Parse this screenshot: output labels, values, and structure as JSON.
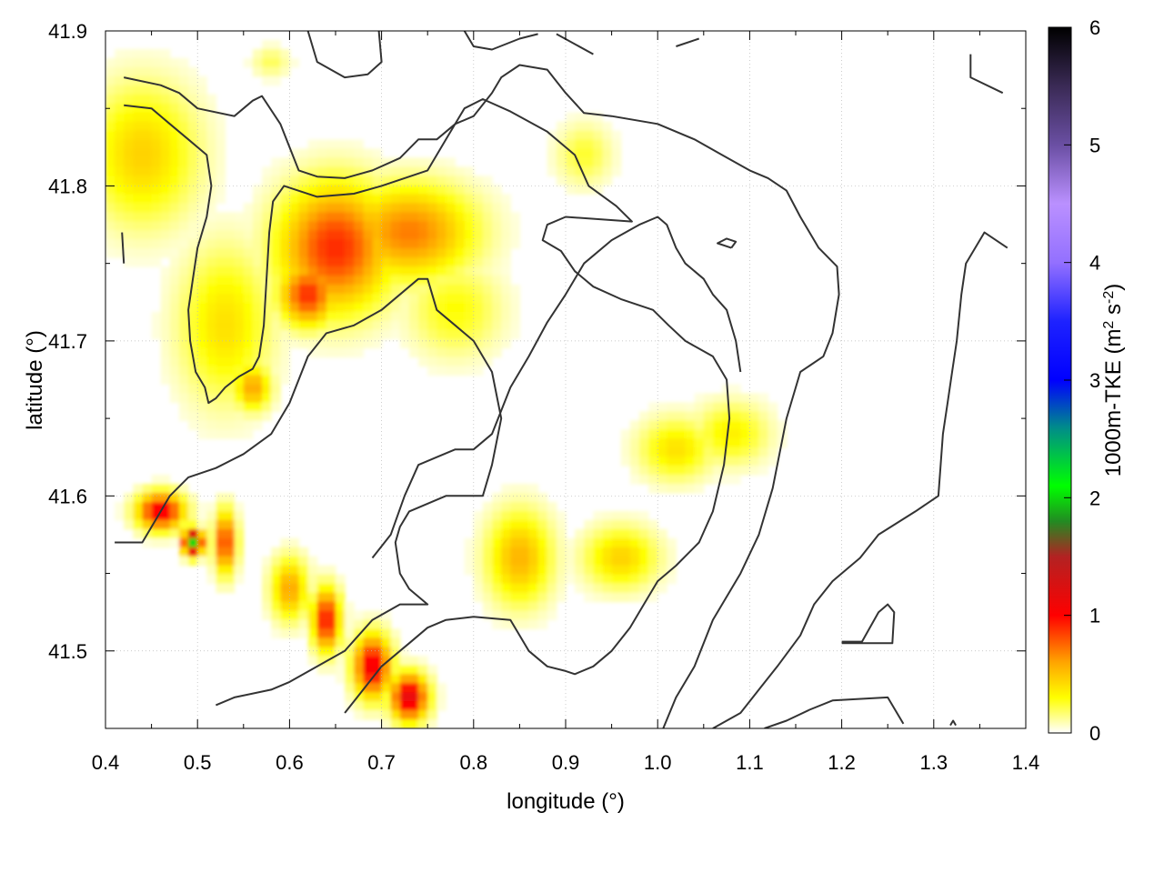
{
  "chart_data": {
    "type": "heatmap",
    "title": "",
    "xlabel": "longitude (°)",
    "ylabel": "latitude (°)",
    "colorbar_label": "1000m-TKE (m² s⁻²)",
    "colorbar_label_parts": {
      "base": "1000m-TKE (m",
      "sup1": "2",
      "mid": " s",
      "sup2": "-2",
      "end": ")"
    },
    "xlim": [
      0.4,
      1.4
    ],
    "ylim": [
      41.45,
      41.9
    ],
    "clim": [
      0,
      6
    ],
    "x_ticks": [
      0.4,
      0.5,
      0.6,
      0.7,
      0.8,
      0.9,
      1.0,
      1.1,
      1.2,
      1.3,
      1.4
    ],
    "x_tick_labels": [
      "0.4",
      "0.5",
      "0.6",
      "0.7",
      "0.8",
      "0.9",
      "1.0",
      "1.1",
      "1.2",
      "1.3",
      "1.4"
    ],
    "y_ticks": [
      41.5,
      41.6,
      41.7,
      41.8,
      41.9
    ],
    "y_tick_labels": [
      "41.5",
      "41.6",
      "41.7",
      "41.8",
      "41.9"
    ],
    "colorbar_ticks": [
      0,
      1,
      2,
      3,
      4,
      5,
      6
    ],
    "colorbar_tick_labels": [
      "0",
      "1",
      "2",
      "3",
      "4",
      "5",
      "6"
    ],
    "grid": true,
    "colormap": [
      {
        "v": 0.0,
        "c": "#ffffff"
      },
      {
        "v": 0.3,
        "c": "#ffff00"
      },
      {
        "v": 0.6,
        "c": "#ffa500"
      },
      {
        "v": 1.0,
        "c": "#ff0000"
      },
      {
        "v": 1.5,
        "c": "#b22222"
      },
      {
        "v": 1.8,
        "c": "#228b22"
      },
      {
        "v": 2.1,
        "c": "#00ff00"
      },
      {
        "v": 2.6,
        "c": "#008b8b"
      },
      {
        "v": 3.0,
        "c": "#0000ff"
      },
      {
        "v": 3.5,
        "c": "#1e22ff"
      },
      {
        "v": 4.0,
        "c": "#9370ff"
      },
      {
        "v": 4.5,
        "c": "#ba90ff"
      },
      {
        "v": 5.0,
        "c": "#6a4fa3"
      },
      {
        "v": 5.5,
        "c": "#3a2a55"
      },
      {
        "v": 6.0,
        "c": "#000000"
      }
    ],
    "tke_blobs": [
      {
        "lon": 0.44,
        "lat": 41.82,
        "r_lon": 0.06,
        "r_lat": 0.045,
        "v": 0.45
      },
      {
        "lon": 0.53,
        "lat": 41.71,
        "r_lon": 0.05,
        "r_lat": 0.05,
        "v": 0.4
      },
      {
        "lon": 0.56,
        "lat": 41.67,
        "r_lon": 0.02,
        "r_lat": 0.015,
        "v": 0.6
      },
      {
        "lon": 0.65,
        "lat": 41.76,
        "r_lon": 0.06,
        "r_lat": 0.04,
        "v": 0.9
      },
      {
        "lon": 0.73,
        "lat": 41.77,
        "r_lon": 0.07,
        "r_lat": 0.03,
        "v": 0.7
      },
      {
        "lon": 0.62,
        "lat": 41.73,
        "r_lon": 0.03,
        "r_lat": 0.02,
        "v": 0.9
      },
      {
        "lon": 0.46,
        "lat": 41.59,
        "r_lon": 0.025,
        "r_lat": 0.012,
        "v": 1.1
      },
      {
        "lon": 0.495,
        "lat": 41.57,
        "r_lon": 0.01,
        "r_lat": 0.008,
        "v": 2.0
      },
      {
        "lon": 0.53,
        "lat": 41.57,
        "r_lon": 0.012,
        "r_lat": 0.02,
        "v": 0.9
      },
      {
        "lon": 0.6,
        "lat": 41.54,
        "r_lon": 0.02,
        "r_lat": 0.02,
        "v": 0.6
      },
      {
        "lon": 0.64,
        "lat": 41.52,
        "r_lon": 0.015,
        "r_lat": 0.02,
        "v": 1.0
      },
      {
        "lon": 0.69,
        "lat": 41.49,
        "r_lon": 0.02,
        "r_lat": 0.02,
        "v": 1.1
      },
      {
        "lon": 0.73,
        "lat": 41.47,
        "r_lon": 0.02,
        "r_lat": 0.015,
        "v": 1.2
      },
      {
        "lon": 0.85,
        "lat": 41.56,
        "r_lon": 0.035,
        "r_lat": 0.03,
        "v": 0.55
      },
      {
        "lon": 0.96,
        "lat": 41.56,
        "r_lon": 0.04,
        "r_lat": 0.02,
        "v": 0.45
      },
      {
        "lon": 1.02,
        "lat": 41.63,
        "r_lon": 0.04,
        "r_lat": 0.02,
        "v": 0.4
      },
      {
        "lon": 1.08,
        "lat": 41.64,
        "r_lon": 0.04,
        "r_lat": 0.02,
        "v": 0.35
      },
      {
        "lon": 0.78,
        "lat": 41.72,
        "r_lon": 0.05,
        "r_lat": 0.03,
        "v": 0.3
      },
      {
        "lon": 0.92,
        "lat": 41.82,
        "r_lon": 0.03,
        "r_lat": 0.02,
        "v": 0.25
      },
      {
        "lon": 0.58,
        "lat": 41.88,
        "r_lon": 0.02,
        "r_lat": 0.01,
        "v": 0.2
      }
    ],
    "contours": [
      [
        [
          0.42,
          41.87
        ],
        [
          0.46,
          41.865
        ],
        [
          0.48,
          41.86
        ],
        [
          0.5,
          41.85
        ],
        [
          0.54,
          41.845
        ],
        [
          0.56,
          41.855
        ],
        [
          0.57,
          41.858
        ],
        [
          0.59,
          41.84
        ],
        [
          0.61,
          41.81
        ],
        [
          0.63,
          41.806
        ],
        [
          0.66,
          41.805
        ],
        [
          0.69,
          41.81
        ],
        [
          0.72,
          41.818
        ],
        [
          0.74,
          41.83
        ],
        [
          0.76,
          41.83
        ],
        [
          0.78,
          41.84
        ],
        [
          0.8,
          41.845
        ],
        [
          0.82,
          41.86
        ],
        [
          0.83,
          41.87
        ],
        [
          0.85,
          41.878
        ],
        [
          0.88,
          41.875
        ],
        [
          0.9,
          41.86
        ],
        [
          0.92,
          41.847
        ],
        [
          0.95,
          41.845
        ],
        [
          1.0,
          41.84
        ],
        [
          1.04,
          41.83
        ],
        [
          1.07,
          41.82
        ],
        [
          1.1,
          41.81
        ],
        [
          1.12,
          41.805
        ],
        [
          1.14,
          41.797
        ],
        [
          1.155,
          41.78
        ],
        [
          1.175,
          41.76
        ],
        [
          1.195,
          41.748
        ],
        [
          1.197,
          41.73
        ],
        [
          1.19,
          41.705
        ],
        [
          1.18,
          41.69
        ],
        [
          1.155,
          41.68
        ],
        [
          1.14,
          41.65
        ],
        [
          1.125,
          41.605
        ],
        [
          1.11,
          41.575
        ],
        [
          1.09,
          41.55
        ],
        [
          1.06,
          41.52
        ],
        [
          1.04,
          41.49
        ],
        [
          1.02,
          41.47
        ],
        [
          1.006,
          41.45
        ]
      ],
      [
        [
          0.42,
          41.852
        ],
        [
          0.45,
          41.85
        ],
        [
          0.47,
          41.84
        ],
        [
          0.49,
          41.83
        ],
        [
          0.51,
          41.82
        ],
        [
          0.515,
          41.8
        ],
        [
          0.51,
          41.78
        ],
        [
          0.5,
          41.76
        ],
        [
          0.495,
          41.74
        ],
        [
          0.49,
          41.72
        ],
        [
          0.492,
          41.7
        ],
        [
          0.498,
          41.68
        ],
        [
          0.508,
          41.67
        ],
        [
          0.512,
          41.66
        ],
        [
          0.52,
          41.663
        ],
        [
          0.53,
          41.67
        ],
        [
          0.545,
          41.677
        ],
        [
          0.56,
          41.682
        ],
        [
          0.567,
          41.69
        ],
        [
          0.572,
          41.71
        ],
        [
          0.575,
          41.74
        ],
        [
          0.578,
          41.77
        ],
        [
          0.582,
          41.79
        ],
        [
          0.594,
          41.8
        ],
        [
          0.63,
          41.793
        ],
        [
          0.67,
          41.795
        ],
        [
          0.7,
          41.8
        ],
        [
          0.75,
          41.81
        ],
        [
          0.77,
          41.83
        ],
        [
          0.79,
          41.85
        ],
        [
          0.81,
          41.856
        ],
        [
          0.84,
          41.848
        ],
        [
          0.88,
          41.835
        ],
        [
          0.91,
          41.82
        ],
        [
          0.925,
          41.8
        ],
        [
          0.955,
          41.787
        ],
        [
          0.972,
          41.777
        ],
        [
          0.9,
          41.78
        ],
        [
          0.88,
          41.775
        ],
        [
          0.875,
          41.765
        ],
        [
          0.895,
          41.758
        ],
        [
          0.91,
          41.745
        ],
        [
          0.93,
          41.735
        ],
        [
          0.96,
          41.727
        ],
        [
          0.995,
          41.72
        ],
        [
          1.012,
          41.71
        ],
        [
          1.03,
          41.7
        ],
        [
          1.06,
          41.69
        ],
        [
          1.075,
          41.675
        ],
        [
          1.078,
          41.65
        ],
        [
          1.072,
          41.62
        ],
        [
          1.06,
          41.59
        ],
        [
          1.045,
          41.57
        ],
        [
          1.02,
          41.555
        ],
        [
          1.0,
          41.545
        ],
        [
          0.985,
          41.53
        ],
        [
          0.97,
          41.515
        ],
        [
          0.95,
          41.5
        ],
        [
          0.93,
          41.49
        ],
        [
          0.91,
          41.485
        ],
        [
          0.9,
          41.487
        ],
        [
          0.88,
          41.49
        ],
        [
          0.86,
          41.5
        ],
        [
          0.84,
          41.52
        ],
        [
          0.8,
          41.522
        ],
        [
          0.77,
          41.52
        ],
        [
          0.75,
          41.515
        ],
        [
          0.73,
          41.505
        ],
        [
          0.72,
          41.5
        ],
        [
          0.7,
          41.49
        ],
        [
          0.68,
          41.475
        ],
        [
          0.66,
          41.46
        ]
      ],
      [
        [
          0.41,
          41.57
        ],
        [
          0.44,
          41.57
        ],
        [
          0.46,
          41.59
        ],
        [
          0.47,
          41.6
        ],
        [
          0.49,
          41.612
        ],
        [
          0.52,
          41.618
        ],
        [
          0.55,
          41.627
        ],
        [
          0.58,
          41.64
        ],
        [
          0.6,
          41.66
        ],
        [
          0.62,
          41.69
        ],
        [
          0.64,
          41.705
        ],
        [
          0.67,
          41.71
        ],
        [
          0.7,
          41.72
        ],
        [
          0.72,
          41.73
        ],
        [
          0.74,
          41.74
        ],
        [
          0.75,
          41.74
        ],
        [
          0.76,
          41.72
        ],
        [
          0.78,
          41.71
        ],
        [
          0.8,
          41.7
        ],
        [
          0.82,
          41.68
        ],
        [
          0.83,
          41.65
        ],
        [
          0.82,
          41.62
        ],
        [
          0.81,
          41.6
        ],
        [
          0.77,
          41.6
        ],
        [
          0.73,
          41.59
        ],
        [
          0.72,
          41.58
        ],
        [
          0.715,
          41.57
        ],
        [
          0.72,
          41.55
        ],
        [
          0.73,
          41.54
        ],
        [
          0.75,
          41.53
        ],
        [
          0.72,
          41.53
        ],
        [
          0.69,
          41.52
        ],
        [
          0.66,
          41.5
        ],
        [
          0.6,
          41.48
        ],
        [
          0.58,
          41.475
        ],
        [
          0.54,
          41.47
        ],
        [
          0.52,
          41.465
        ]
      ],
      [
        [
          0.69,
          41.56
        ],
        [
          0.71,
          41.575
        ],
        [
          0.725,
          41.6
        ],
        [
          0.74,
          41.62
        ],
        [
          0.76,
          41.625
        ],
        [
          0.78,
          41.63
        ],
        [
          0.8,
          41.63
        ],
        [
          0.82,
          41.64
        ],
        [
          0.84,
          41.67
        ],
        [
          0.86,
          41.69
        ],
        [
          0.88,
          41.712
        ],
        [
          0.9,
          41.73
        ],
        [
          0.92,
          41.75
        ],
        [
          0.95,
          41.765
        ],
        [
          0.98,
          41.775
        ],
        [
          1.0,
          41.78
        ],
        [
          1.01,
          41.775
        ],
        [
          1.02,
          41.76
        ],
        [
          1.03,
          41.75
        ],
        [
          1.04,
          41.745
        ],
        [
          1.05,
          41.74
        ],
        [
          1.06,
          41.73
        ],
        [
          1.075,
          41.72
        ],
        [
          1.085,
          41.7
        ],
        [
          1.09,
          41.68
        ]
      ]
    ],
    "contour_fragments": [
      [
        [
          0.62,
          41.9
        ],
        [
          0.63,
          41.88
        ],
        [
          0.66,
          41.87
        ],
        [
          0.685,
          41.872
        ],
        [
          0.7,
          41.88
        ],
        [
          0.697,
          41.9
        ]
      ],
      [
        [
          0.79,
          41.9
        ],
        [
          0.8,
          41.89
        ],
        [
          0.82,
          41.888
        ],
        [
          0.85,
          41.895
        ],
        [
          0.87,
          41.898
        ]
      ],
      [
        [
          0.89,
          41.898
        ],
        [
          0.93,
          41.885
        ]
      ],
      [
        [
          1.02,
          41.89
        ],
        [
          1.045,
          41.895
        ]
      ],
      [
        [
          1.34,
          41.885
        ],
        [
          1.34,
          41.87
        ],
        [
          1.375,
          41.86
        ]
      ],
      [
        [
          1.08,
          41.76
        ],
        [
          1.065,
          41.763
        ],
        [
          1.075,
          41.766
        ],
        [
          1.085,
          41.764
        ],
        [
          1.08,
          41.76
        ]
      ],
      [
        [
          0.418,
          41.77
        ],
        [
          0.42,
          41.75
        ]
      ],
      [
        [
          1.38,
          41.76
        ],
        [
          1.355,
          41.77
        ],
        [
          1.335,
          41.75
        ],
        [
          1.33,
          41.73
        ],
        [
          1.325,
          41.7
        ],
        [
          1.32,
          41.68
        ],
        [
          1.315,
          41.66
        ],
        [
          1.31,
          41.64
        ],
        [
          1.305,
          41.6
        ],
        [
          1.28,
          41.59
        ],
        [
          1.24,
          41.575
        ],
        [
          1.22,
          41.56
        ],
        [
          1.19,
          41.545
        ],
        [
          1.17,
          41.53
        ],
        [
          1.155,
          41.51
        ],
        [
          1.13,
          41.49
        ],
        [
          1.11,
          41.475
        ],
        [
          1.09,
          41.46
        ],
        [
          1.06,
          41.45
        ]
      ],
      [
        [
          1.2,
          41.506
        ],
        [
          1.222,
          41.506
        ],
        [
          1.24,
          41.525
        ],
        [
          1.25,
          41.53
        ],
        [
          1.257,
          41.525
        ],
        [
          1.255,
          41.505
        ],
        [
          1.2,
          41.505
        ]
      ],
      [
        [
          1.116,
          41.45
        ],
        [
          1.14,
          41.455
        ],
        [
          1.165,
          41.462
        ],
        [
          1.19,
          41.468
        ],
        [
          1.25,
          41.47
        ],
        [
          1.267,
          41.453
        ]
      ],
      [
        [
          1.318,
          41.452
        ],
        [
          1.321,
          41.455
        ],
        [
          1.324,
          41.452
        ]
      ]
    ]
  }
}
